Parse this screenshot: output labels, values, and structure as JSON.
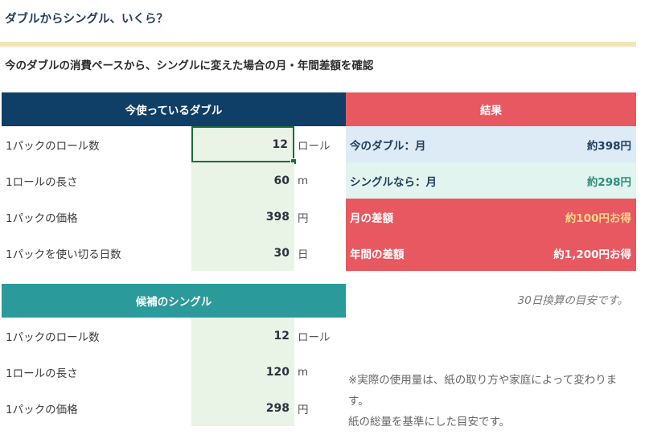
{
  "title": "ダブルからシングル、いくら？",
  "subtitle": "今のダブルの消費ペースから、シングルに変えた場合の月・年間差額を確認",
  "double_panel": {
    "header": "今使っているダブル",
    "rows": [
      {
        "label": "1パックのロール数",
        "value": "12",
        "unit": "ロール"
      },
      {
        "label": "1ロールの長さ",
        "value": "60",
        "unit": "m"
      },
      {
        "label": "1パックの価格",
        "value": "398",
        "unit": "円"
      },
      {
        "label": "1パックを使い切る日数",
        "value": "30",
        "unit": "日"
      }
    ]
  },
  "single_panel": {
    "header": "候補のシングル",
    "rows": [
      {
        "label": "1パックのロール数",
        "value": "12",
        "unit": "ロール"
      },
      {
        "label": "1ロールの長さ",
        "value": "120",
        "unit": "m"
      },
      {
        "label": "1パックの価格",
        "value": "298",
        "unit": "円"
      }
    ]
  },
  "result_panel": {
    "header": "結果",
    "rows": [
      {
        "label": "今のダブル：月",
        "value": "約398円"
      },
      {
        "label": "シングルなら：月",
        "value": "約298円"
      },
      {
        "label": "月の差額",
        "value": "約100円お得"
      },
      {
        "label": "年間の差額",
        "value": "約1,200円お得"
      }
    ]
  },
  "notes": {
    "basis": "30日換算の目安です。",
    "disclaimer_line1": "※実際の使用量は、紙の取り方や家庭によって変わります。",
    "disclaimer_line2": "紙の総量を基準にした目安です。"
  },
  "colors": {
    "navy": "#0f3f66",
    "teal": "#2a9a9a",
    "red": "#e85860",
    "input_fill": "#e9f3e6",
    "divider": "#f3e3b5"
  }
}
